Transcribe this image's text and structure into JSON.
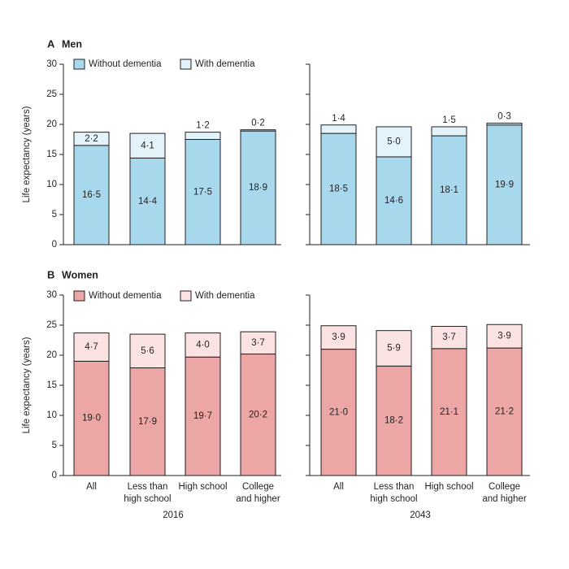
{
  "chart_data": [
    {
      "type": "bar",
      "stacked": true,
      "panel_letter": "A",
      "panel_title": "Men",
      "ylabel": "Life expectancy (years)",
      "ylim": [
        0,
        30
      ],
      "yticks": [
        "0",
        "5",
        "10",
        "15",
        "20",
        "25",
        "30"
      ],
      "legend": [
        "Without dementia",
        "With dementia"
      ],
      "colors": {
        "without": "#a8d8eb",
        "with": "#e3f3fa"
      },
      "groups": [
        {
          "year": "2016",
          "bars": [
            {
              "without": 16.5,
              "with": 2.2,
              "without_label": "16·5",
              "with_label": "2·2"
            },
            {
              "without": 14.4,
              "with": 4.1,
              "without_label": "14·4",
              "with_label": "4·1"
            },
            {
              "without": 17.5,
              "with": 1.2,
              "without_label": "17·5",
              "with_label": "1·2"
            },
            {
              "without": 18.9,
              "with": 0.2,
              "without_label": "18·9",
              "with_label": "0·2"
            }
          ]
        },
        {
          "year": "2043",
          "bars": [
            {
              "without": 18.5,
              "with": 1.4,
              "without_label": "18·5",
              "with_label": "1·4"
            },
            {
              "without": 14.6,
              "with": 5.0,
              "without_label": "14·6",
              "with_label": "5·0"
            },
            {
              "without": 18.1,
              "with": 1.5,
              "without_label": "18·1",
              "with_label": "1·5"
            },
            {
              "without": 19.9,
              "with": 0.3,
              "without_label": "19·9",
              "with_label": "0·3"
            }
          ]
        }
      ]
    },
    {
      "type": "bar",
      "stacked": true,
      "panel_letter": "B",
      "panel_title": "Women",
      "ylabel": "Life expectancy (years)",
      "ylim": [
        0,
        30
      ],
      "yticks": [
        "0",
        "5",
        "10",
        "15",
        "20",
        "25",
        "30"
      ],
      "legend": [
        "Without dementia",
        "With dementia"
      ],
      "colors": {
        "without": "#eba6a5",
        "with": "#fbe3e3"
      },
      "groups": [
        {
          "year": "2016",
          "bars": [
            {
              "without": 19.0,
              "with": 4.7,
              "without_label": "19·0",
              "with_label": "4·7"
            },
            {
              "without": 17.9,
              "with": 5.6,
              "without_label": "17·9",
              "with_label": "5·6"
            },
            {
              "without": 19.7,
              "with": 4.0,
              "without_label": "19·7",
              "with_label": "4·0"
            },
            {
              "without": 20.2,
              "with": 3.7,
              "without_label": "20·2",
              "with_label": "3·7"
            }
          ]
        },
        {
          "year": "2043",
          "bars": [
            {
              "without": 21.0,
              "with": 3.9,
              "without_label": "21·0",
              "with_label": "3·9"
            },
            {
              "without": 18.2,
              "with": 5.9,
              "without_label": "18·2",
              "with_label": "5·9"
            },
            {
              "without": 21.1,
              "with": 3.7,
              "without_label": "21·1",
              "with_label": "3·7"
            },
            {
              "without": 21.2,
              "with": 3.9,
              "without_label": "21·2",
              "with_label": "3·9"
            }
          ]
        }
      ]
    }
  ],
  "categories": [
    [
      "All"
    ],
    [
      "Less than",
      "high school"
    ],
    [
      "High school"
    ],
    [
      "College",
      "and higher"
    ]
  ],
  "x_group_labels": [
    "2016",
    "2043"
  ],
  "axis_color": "#231f20"
}
